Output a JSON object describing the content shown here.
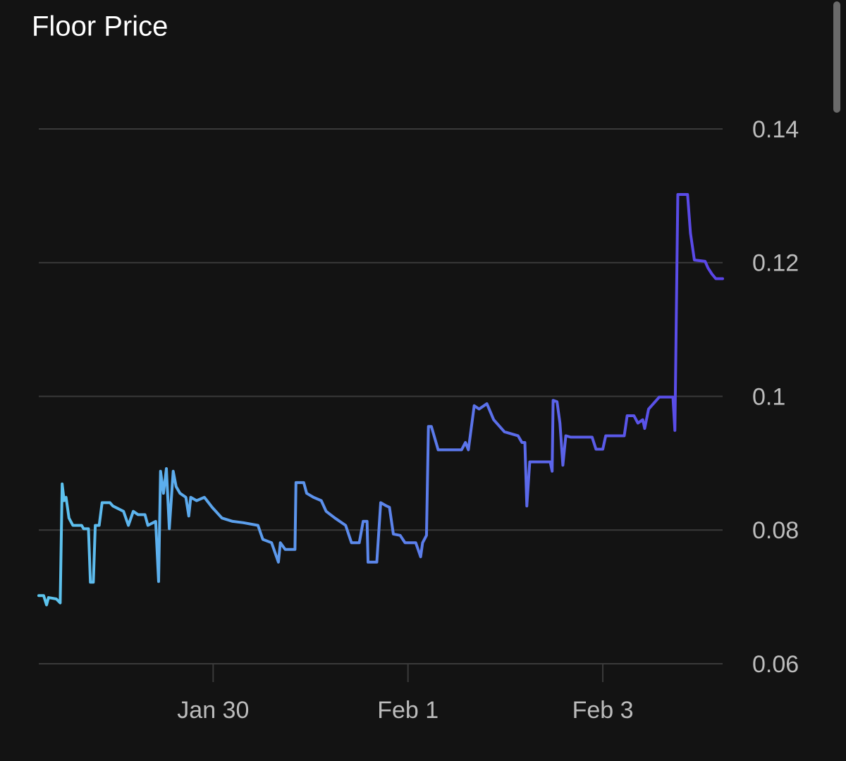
{
  "chart_data": {
    "type": "line",
    "title": "Floor Price",
    "x": [
      28.21,
      28.26,
      28.29,
      28.31,
      28.39,
      28.43,
      28.45,
      28.47,
      28.49,
      28.52,
      28.56,
      28.65,
      28.67,
      28.72,
      28.74,
      28.77,
      28.79,
      28.83,
      28.86,
      28.94,
      28.97,
      29.08,
      29.13,
      29.18,
      29.23,
      29.3,
      29.33,
      29.41,
      29.44,
      29.46,
      29.49,
      29.52,
      29.55,
      29.59,
      29.62,
      29.66,
      29.72,
      29.75,
      29.77,
      29.83,
      29.91,
      29.99,
      30.09,
      30.2,
      30.31,
      30.46,
      30.51,
      30.6,
      30.67,
      30.69,
      30.74,
      30.84,
      30.85,
      30.93,
      30.96,
      31.03,
      31.11,
      31.16,
      31.25,
      31.36,
      31.42,
      31.5,
      31.54,
      31.58,
      31.59,
      31.68,
      31.72,
      31.78,
      31.81,
      31.85,
      31.92,
      31.97,
      32.08,
      32.13,
      32.15,
      32.19,
      32.21,
      32.24,
      32.31,
      32.55,
      32.59,
      32.62,
      32.68,
      32.73,
      32.81,
      32.88,
      32.99,
      33.13,
      33.17,
      33.2,
      33.22,
      33.25,
      33.46,
      33.48,
      33.49,
      33.53,
      33.56,
      33.59,
      33.62,
      33.67,
      33.89,
      33.93,
      34.0,
      34.03,
      34.22,
      34.25,
      34.32,
      34.36,
      34.41,
      34.43,
      34.47,
      34.58,
      34.72,
      34.74,
      34.77,
      34.87,
      34.9,
      34.94,
      35.05,
      35.08,
      35.12,
      35.16,
      35.23
    ],
    "values": [
      0.0702,
      0.0702,
      0.0688,
      0.0699,
      0.0697,
      0.0691,
      0.0869,
      0.0844,
      0.0849,
      0.0818,
      0.0807,
      0.0807,
      0.0802,
      0.0802,
      0.0722,
      0.0722,
      0.0807,
      0.0807,
      0.0841,
      0.0841,
      0.0836,
      0.0828,
      0.0807,
      0.0828,
      0.0823,
      0.0823,
      0.0807,
      0.0813,
      0.0723,
      0.0888,
      0.0855,
      0.0892,
      0.0802,
      0.0888,
      0.0865,
      0.0855,
      0.0849,
      0.0821,
      0.0849,
      0.0844,
      0.0849,
      0.0834,
      0.0818,
      0.0813,
      0.0811,
      0.0807,
      0.0786,
      0.0781,
      0.0752,
      0.0781,
      0.0771,
      0.0771,
      0.0871,
      0.0871,
      0.0855,
      0.0849,
      0.0844,
      0.0828,
      0.0818,
      0.0807,
      0.0781,
      0.0781,
      0.0813,
      0.0813,
      0.0752,
      0.0752,
      0.0841,
      0.0836,
      0.0834,
      0.0794,
      0.0792,
      0.0781,
      0.0781,
      0.076,
      0.0781,
      0.0792,
      0.0955,
      0.0955,
      0.092,
      0.092,
      0.0931,
      0.092,
      0.0986,
      0.0981,
      0.0989,
      0.0965,
      0.0947,
      0.0941,
      0.0931,
      0.0931,
      0.0836,
      0.0902,
      0.0902,
      0.0888,
      0.0994,
      0.0992,
      0.096,
      0.0897,
      0.0941,
      0.0939,
      0.0939,
      0.0921,
      0.0921,
      0.0941,
      0.0941,
      0.0971,
      0.0971,
      0.096,
      0.0965,
      0.0952,
      0.0981,
      0.0999,
      0.0999,
      0.0949,
      0.1302,
      0.1302,
      0.1244,
      0.1204,
      0.1202,
      0.1192,
      0.1183,
      0.1176,
      0.1176
    ],
    "line_gradient": [
      "#5dc6ee",
      "#5a44e8"
    ],
    "xlim": [
      28.21,
      35.23
    ],
    "xticks": [
      {
        "value": 30,
        "label": "Jan 30"
      },
      {
        "value": 32,
        "label": "Feb 1"
      },
      {
        "value": 34,
        "label": "Feb 3"
      }
    ],
    "ylim": [
      0.06,
      0.14
    ],
    "yticks": [
      0.06,
      0.08,
      0.1,
      0.12,
      0.14
    ],
    "grid": true
  }
}
